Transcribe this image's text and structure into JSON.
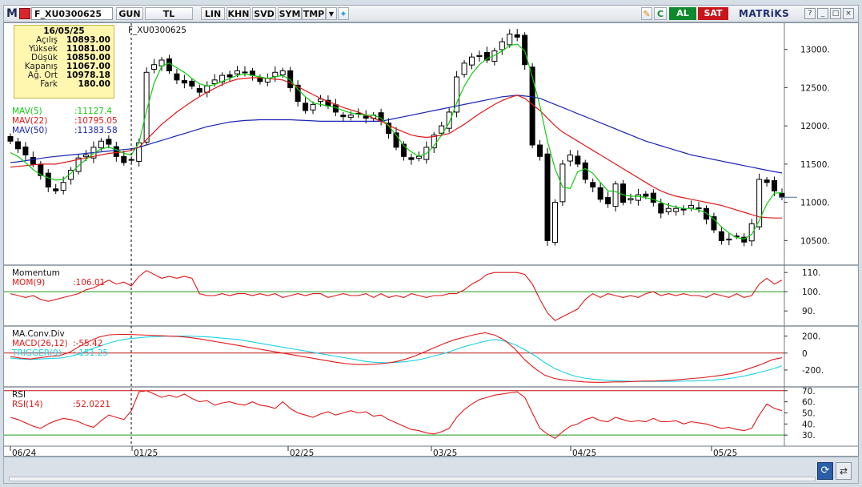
{
  "toolbar": {
    "symbol": "F_XU0300625",
    "buttons": [
      "GUN",
      "TL",
      "LIN",
      "KHN",
      "SVD",
      "SYM",
      "TMP"
    ],
    "buy_label": "AL",
    "sell_label": "SAT",
    "brand": "MATRiKS",
    "c_label": "C"
  },
  "info_box": {
    "date": "16/05/25",
    "rows": [
      {
        "label": "Açılış",
        "value": "10893.00"
      },
      {
        "label": "Yüksek",
        "value": "11081.00"
      },
      {
        "label": "Düşük",
        "value": "10850.00"
      },
      {
        "label": "Kapanış",
        "value": "11067.00"
      },
      {
        "label": "Ağ. Ort",
        "value": "10978.18"
      },
      {
        "label": "Fark",
        "value": "180.00"
      }
    ]
  },
  "colors": {
    "up_candle": "#ffffff",
    "down_candle": "#000000",
    "mav5": "#11cc11",
    "mav22": "#e01818",
    "mav50": "#1a24b4",
    "momentum": "#e01818",
    "macd": "#e01818",
    "trigger": "#1ad2e6",
    "rsi": "#e01818",
    "ref_green": "#1a9a1a",
    "ref_red": "#c01010"
  },
  "chart_data": [
    {
      "type": "candlestick",
      "title": "F_XU0300625",
      "ylim": [
        10200,
        13300
      ],
      "yticks": [
        "13000.",
        "12500.",
        "12000.",
        "11500.",
        "11000.",
        "10500."
      ],
      "x_labels": [
        "06/24",
        "01/25",
        "02/25",
        "03/25",
        "04/25",
        "05/25"
      ],
      "legend": [
        {
          "label": "MAV(5)",
          "value": ":11127.4",
          "color": "#11cc11"
        },
        {
          "label": "MAV(22)",
          "value": ":10795.05",
          "color": "#e01818"
        },
        {
          "label": "MAV(50)",
          "value": ":11383.58",
          "color": "#1a24b4"
        }
      ],
      "candles_close": [
        11800,
        11700,
        11620,
        11500,
        11350,
        11200,
        11150,
        11260,
        11420,
        11580,
        11620,
        11720,
        11800,
        11760,
        11600,
        11520,
        11560,
        11780,
        12700,
        12800,
        12860,
        12720,
        12600,
        12560,
        12520,
        12440,
        12520,
        12600,
        12660,
        12640,
        12720,
        12700,
        12660,
        12580,
        12620,
        12700,
        12720,
        12500,
        12320,
        12200,
        12280,
        12350,
        12260,
        12180,
        12120,
        12140,
        12160,
        12100,
        12140,
        12060,
        11900,
        11720,
        11600,
        11560,
        11600,
        11720,
        11880,
        12000,
        12180,
        12640,
        12820,
        12900,
        12920,
        12860,
        12980,
        13100,
        13200,
        13160,
        12800,
        11750,
        11600,
        10500,
        11000,
        11500,
        11620,
        11500,
        11300,
        11200,
        11040,
        10980,
        11240,
        11000,
        11050,
        11100,
        11080,
        11000,
        10860,
        10920,
        10920,
        10900,
        10960,
        10920,
        10780,
        10640,
        10500,
        10520,
        10560,
        10480,
        10720,
        11300,
        11260,
        11150,
        11067
      ],
      "mav5": [
        11650,
        11600,
        11520,
        11430,
        11360,
        11320,
        11290,
        11300,
        11380,
        11480,
        11560,
        11640,
        11700,
        11720,
        11690,
        11640,
        11620,
        11780,
        12200,
        12560,
        12780,
        12820,
        12760,
        12700,
        12620,
        12550,
        12520,
        12540,
        12580,
        12620,
        12660,
        12680,
        12660,
        12640,
        12620,
        12640,
        12660,
        12600,
        12480,
        12380,
        12300,
        12280,
        12260,
        12240,
        12200,
        12170,
        12150,
        12140,
        12140,
        12100,
        12000,
        11880,
        11740,
        11660,
        11600,
        11640,
        11740,
        11880,
        12040,
        12300,
        12520,
        12680,
        12800,
        12880,
        12920,
        12980,
        13050,
        13070,
        12980,
        12640,
        12260,
        11800,
        11440,
        11200,
        11180,
        11400,
        11440,
        11380,
        11260,
        11150,
        11140,
        11100,
        11080,
        11080,
        11060,
        11040,
        11000,
        10960,
        10940,
        10920,
        10920,
        10900,
        10860,
        10780,
        10680,
        10600,
        10540,
        10520,
        10580,
        10760,
        10980,
        11120,
        11127
      ],
      "mav22": [
        11460,
        11470,
        11480,
        11490,
        11500,
        11500,
        11500,
        11520,
        11540,
        11560,
        11580,
        11600,
        11620,
        11640,
        11650,
        11660,
        11680,
        11720,
        11820,
        11920,
        12020,
        12100,
        12180,
        12250,
        12320,
        12380,
        12440,
        12490,
        12540,
        12580,
        12610,
        12620,
        12630,
        12630,
        12620,
        12610,
        12600,
        12560,
        12510,
        12460,
        12410,
        12360,
        12320,
        12280,
        12240,
        12210,
        12180,
        12140,
        12100,
        12060,
        12010,
        11960,
        11920,
        11880,
        11860,
        11850,
        11860,
        11880,
        11900,
        11960,
        12020,
        12090,
        12160,
        12220,
        12280,
        12330,
        12370,
        12400,
        12360,
        12280,
        12200,
        12100,
        12000,
        11920,
        11860,
        11800,
        11740,
        11680,
        11620,
        11560,
        11500,
        11440,
        11380,
        11320,
        11260,
        11200,
        11150,
        11110,
        11080,
        11060,
        11040,
        11020,
        11000,
        10980,
        10960,
        10930,
        10900,
        10870,
        10840,
        10810,
        10800,
        10795,
        10795
      ],
      "mav50": [
        11520,
        11530,
        11545,
        11560,
        11575,
        11590,
        11600,
        11610,
        11620,
        11630,
        11640,
        11650,
        11660,
        11670,
        11680,
        11690,
        11700,
        11720,
        11750,
        11780,
        11810,
        11840,
        11870,
        11900,
        11930,
        11960,
        11990,
        12010,
        12030,
        12050,
        12060,
        12070,
        12075,
        12080,
        12080,
        12080,
        12080,
        12080,
        12075,
        12070,
        12065,
        12060,
        12060,
        12060,
        12060,
        12060,
        12060,
        12060,
        12060,
        12060,
        12080,
        12100,
        12120,
        12140,
        12160,
        12180,
        12200,
        12220,
        12240,
        12260,
        12280,
        12300,
        12320,
        12340,
        12360,
        12380,
        12390,
        12400,
        12390,
        12380,
        12360,
        12320,
        12280,
        12240,
        12200,
        12160,
        12120,
        12080,
        12040,
        12000,
        11960,
        11920,
        11880,
        11840,
        11800,
        11770,
        11740,
        11710,
        11680,
        11650,
        11620,
        11600,
        11580,
        11560,
        11540,
        11520,
        11500,
        11480,
        11460,
        11440,
        11420,
        11400,
        11384
      ]
    },
    {
      "type": "line",
      "title": "Momentum",
      "legend": [
        {
          "label": "MOM(9)",
          "value": ":106.01",
          "color": "#e01818"
        }
      ],
      "ylim": [
        83,
        113
      ],
      "yticks": [
        "110.",
        "100.",
        "90."
      ],
      "reference": 100,
      "values": [
        99,
        98,
        97,
        98,
        96,
        95,
        96,
        97,
        98,
        99,
        101,
        102,
        104,
        106,
        104,
        105,
        103,
        108,
        111,
        109,
        107,
        108,
        107,
        108,
        107,
        99,
        98,
        98,
        99,
        98,
        99,
        99,
        98,
        99,
        98,
        99,
        97,
        98,
        99,
        98,
        99,
        99,
        97,
        98,
        99,
        98,
        98,
        99,
        97,
        99,
        97,
        98,
        97,
        99,
        98,
        97,
        98,
        98,
        99,
        99,
        101,
        104,
        106,
        109,
        110,
        110,
        110,
        110,
        109,
        104,
        96,
        89,
        85,
        87,
        89,
        91,
        96,
        99,
        97,
        99,
        98,
        97,
        98,
        97,
        99,
        100,
        98,
        99,
        98,
        99,
        98,
        98,
        97,
        99,
        98,
        97,
        99,
        97,
        98,
        104,
        107,
        104,
        106
      ]
    },
    {
      "type": "line",
      "title": "MA.Conv.Div",
      "legend": [
        {
          "label": "MACD(26,12)",
          "value": ":-55.42",
          "color": "#e01818"
        },
        {
          "label": "TRIGGER(9)",
          "value": ":-151.25",
          "color": "#1ad2e6"
        }
      ],
      "ylim": [
        -380,
        300
      ],
      "yticks": [
        "200.",
        "0",
        "-200."
      ],
      "reference": 0,
      "macd": [
        -40,
        -60,
        -70,
        -55,
        -40,
        -30,
        10,
        80,
        140,
        190,
        215,
        220,
        220,
        215,
        210,
        205,
        200,
        195,
        185,
        170,
        150,
        130,
        110,
        90,
        70,
        50,
        30,
        10,
        -10,
        -30,
        -50,
        -70,
        -90,
        -110,
        -125,
        -135,
        -135,
        -130,
        -120,
        -100,
        -70,
        -30,
        20,
        70,
        120,
        160,
        190,
        220,
        240,
        210,
        150,
        50,
        -80,
        -180,
        -260,
        -300,
        -320,
        -330,
        -340,
        -345,
        -345,
        -340,
        -340,
        -335,
        -330,
        -330,
        -325,
        -320,
        -310,
        -300,
        -290,
        -275,
        -260,
        -240,
        -210,
        -170,
        -130,
        -80,
        -55
      ],
      "trigger": [
        -60,
        -70,
        -75,
        -70,
        -65,
        -60,
        -40,
        -10,
        40,
        80,
        120,
        150,
        170,
        180,
        190,
        195,
        200,
        200,
        200,
        195,
        190,
        180,
        170,
        160,
        140,
        120,
        100,
        80,
        60,
        40,
        20,
        0,
        -20,
        -40,
        -60,
        -80,
        -100,
        -110,
        -115,
        -110,
        -100,
        -85,
        -60,
        -30,
        0,
        40,
        80,
        110,
        140,
        160,
        140,
        100,
        40,
        -30,
        -110,
        -180,
        -230,
        -270,
        -295,
        -310,
        -320,
        -325,
        -330,
        -335,
        -335,
        -335,
        -335,
        -335,
        -330,
        -330,
        -325,
        -320,
        -310,
        -295,
        -275,
        -250,
        -220,
        -190,
        -151
      ]
    },
    {
      "type": "line",
      "title": "RSI",
      "legend": [
        {
          "label": "RSI(14)",
          "value": ":52.0221",
          "color": "#e01818"
        }
      ],
      "ylim": [
        20,
        72
      ],
      "yticks": [
        "70.",
        "60.",
        "50.",
        "40.",
        "30."
      ],
      "reference_high": 70,
      "reference_low": 30,
      "values": [
        46,
        44,
        41,
        38,
        36,
        40,
        43,
        45,
        44,
        42,
        39,
        37,
        43,
        48,
        46,
        44,
        52,
        69,
        70,
        67,
        64,
        66,
        64,
        67,
        63,
        60,
        61,
        57,
        59,
        60,
        58,
        57,
        60,
        57,
        56,
        54,
        60,
        54,
        50,
        48,
        46,
        49,
        51,
        48,
        50,
        52,
        50,
        51,
        47,
        48,
        44,
        41,
        38,
        35,
        34,
        32,
        31,
        33,
        36,
        46,
        53,
        58,
        62,
        64,
        66,
        67,
        68,
        69,
        64,
        50,
        36,
        31,
        27,
        33,
        38,
        40,
        44,
        46,
        43,
        42,
        46,
        44,
        42,
        43,
        42,
        45,
        42,
        42,
        43,
        40,
        42,
        41,
        40,
        38,
        36,
        37,
        35,
        34,
        36,
        48,
        58,
        54,
        52
      ]
    }
  ]
}
